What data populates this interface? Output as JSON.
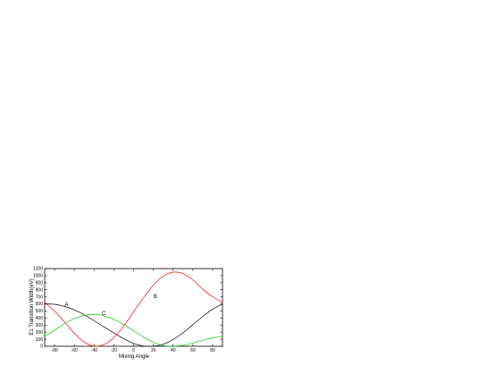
{
  "chart_data": {
    "type": "line",
    "title": "",
    "xlabel": "Mixing Angle",
    "ylabel": "E1 Transition Width(eV)",
    "xlim": [
      -90,
      90
    ],
    "ylim": [
      0,
      1100
    ],
    "x_ticks": [
      -80,
      -60,
      -40,
      -20,
      0,
      20,
      40,
      60,
      80
    ],
    "y_ticks": [
      0,
      100,
      200,
      300,
      400,
      500,
      600,
      700,
      800,
      900,
      1000,
      1100
    ],
    "grid": false,
    "legend": "none",
    "x": [
      -90,
      -80,
      -70,
      -60,
      -50,
      -40,
      -30,
      -20,
      -10,
      0,
      10,
      20,
      30,
      40,
      50,
      60,
      70,
      80,
      90
    ],
    "series": [
      {
        "label": "A",
        "color": "#000000",
        "values": [
          600,
          594,
          564,
          516,
          446,
          362,
          274,
          189,
          107,
          40,
          4,
          0,
          29,
          95,
          191,
          306,
          422,
          525,
          600
        ]
      },
      {
        "label": "B",
        "color": "#ff0000",
        "values": [
          622,
          500,
          347,
          185,
          59,
          0,
          24,
          121,
          285,
          486,
          685,
          864,
          994,
          1049,
          1030,
          940,
          810,
          700,
          622
        ]
      },
      {
        "label": "C",
        "color": "#00cc00",
        "values": [
          140,
          228,
          320,
          391,
          436,
          450,
          431,
          381,
          307,
          220,
          132,
          58,
          10,
          0,
          14,
          45,
          85,
          120,
          140
        ]
      }
    ]
  }
}
